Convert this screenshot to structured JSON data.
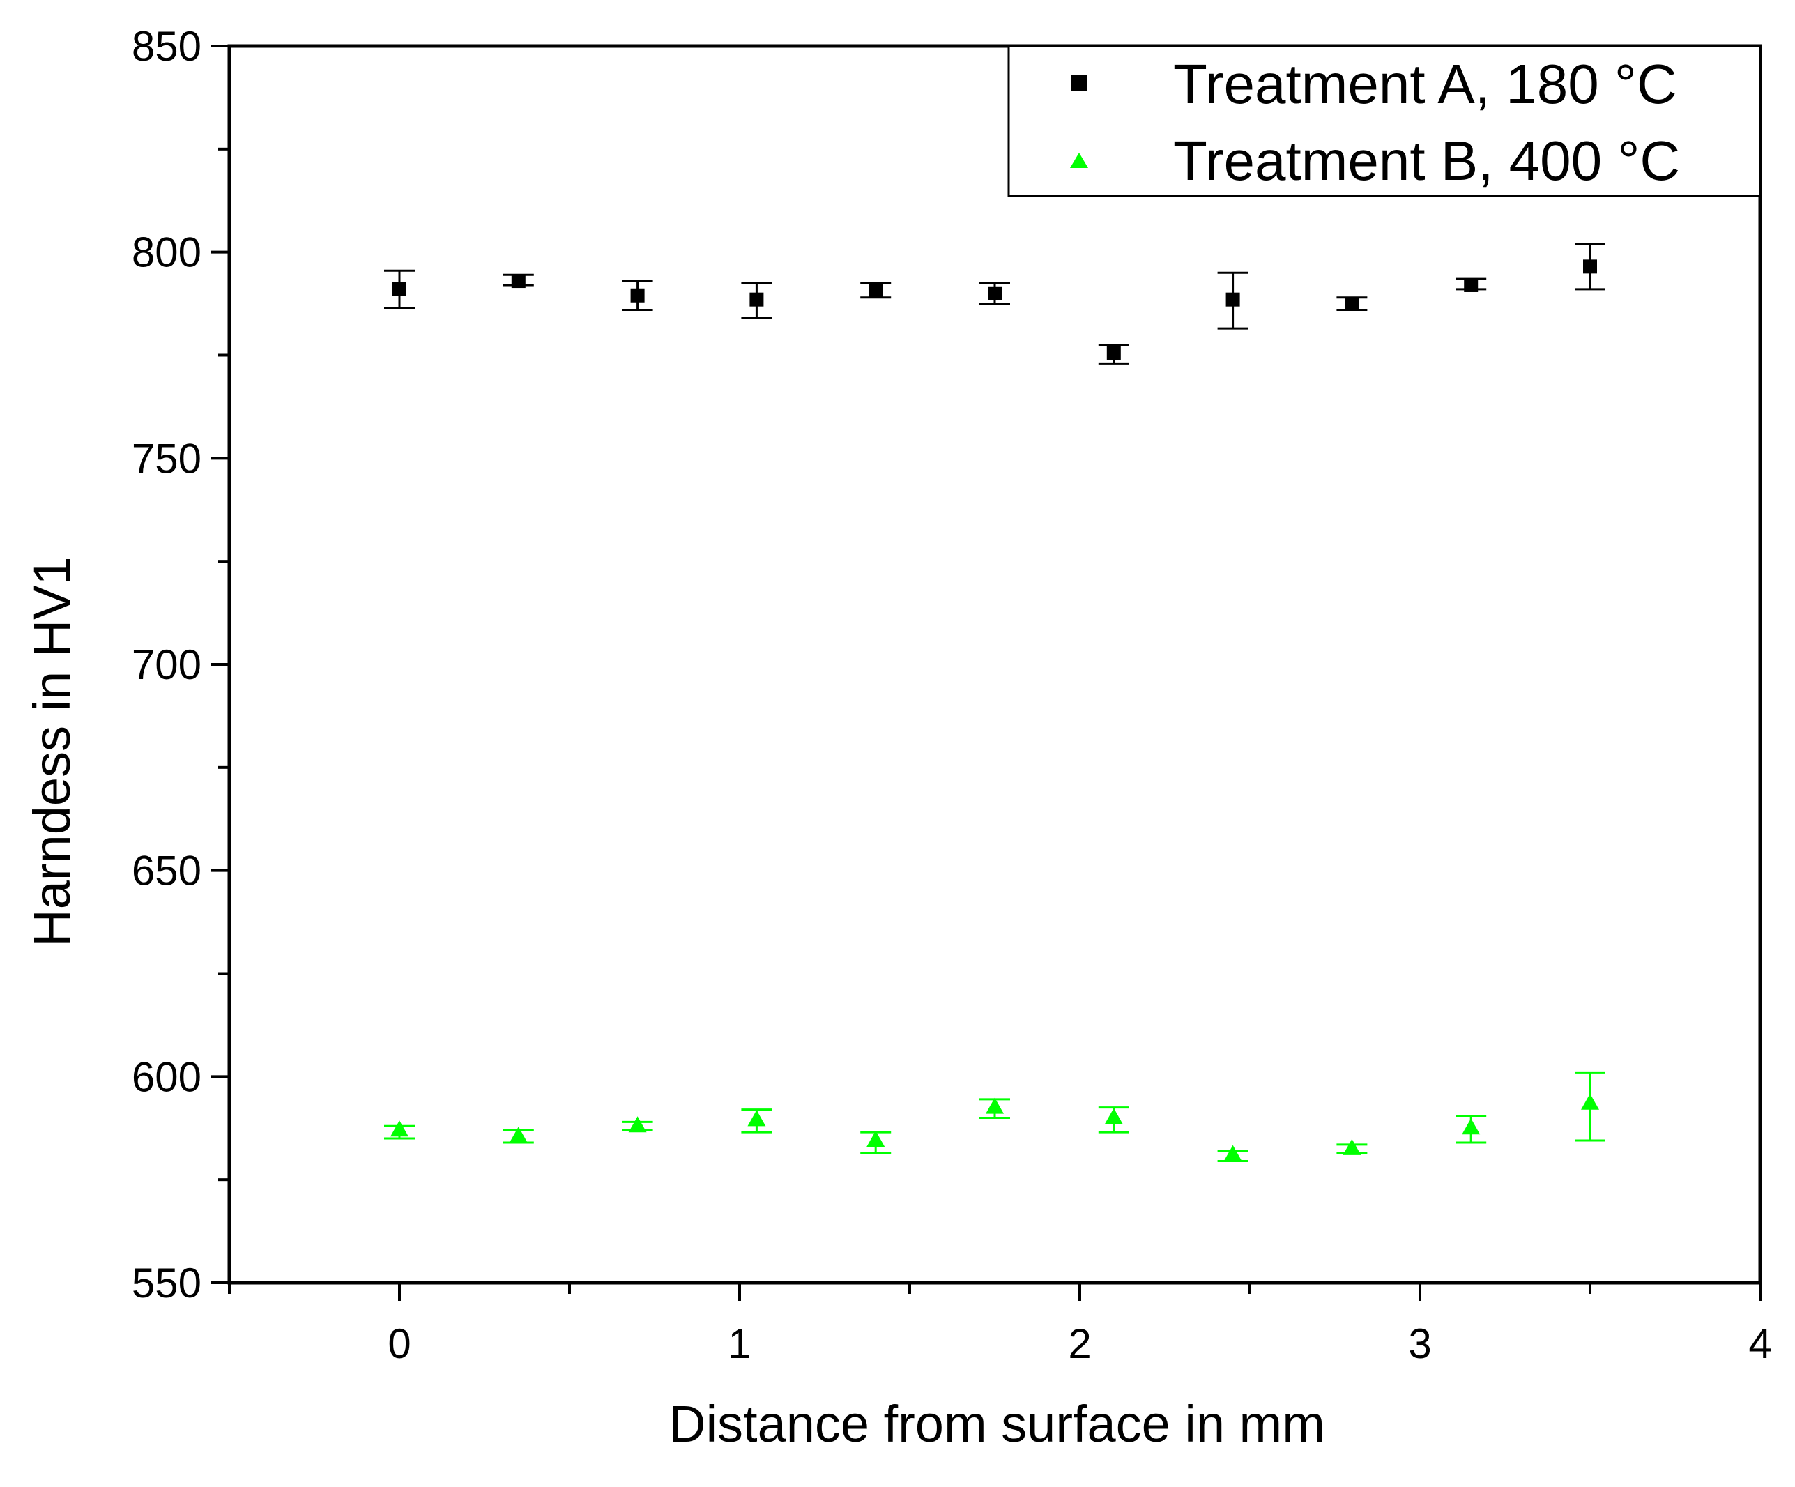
{
  "chart_data": {
    "type": "scatter",
    "xlabel": "Distance from surface in mm",
    "ylabel": "Harndess in HV1",
    "xlim": [
      -0.5,
      4
    ],
    "ylim": [
      550,
      850
    ],
    "x_ticks": [
      0,
      1,
      2,
      3,
      4
    ],
    "x_minor_ticks": [
      -0.5,
      0.5,
      1.5,
      2.5,
      3.5
    ],
    "y_ticks": [
      550,
      600,
      650,
      700,
      750,
      800,
      850
    ],
    "y_minor_ticks": [
      575,
      625,
      675,
      725,
      775,
      825
    ],
    "x_tick_labels": [
      "0",
      "1",
      "2",
      "3",
      "4"
    ],
    "y_tick_labels": [
      "550",
      "600",
      "650",
      "700",
      "750",
      "800",
      "850"
    ],
    "grid": false,
    "legend_position": "top-right",
    "series": [
      {
        "name": "Treatment A, 180 °C",
        "marker": "square",
        "color": "#000000",
        "x": [
          0,
          0.35,
          0.7,
          1.05,
          1.4,
          1.75,
          2.1,
          2.45,
          2.8,
          3.15,
          3.5
        ],
        "y": [
          791,
          793,
          789.5,
          788.5,
          790.5,
          790,
          775.5,
          788.5,
          787.5,
          792,
          796.5
        ],
        "err_low": [
          786.5,
          792,
          786,
          784,
          789,
          787.5,
          773,
          781.5,
          786,
          791,
          791
        ],
        "err_high": [
          795.5,
          794.5,
          793,
          792.5,
          792.5,
          792.5,
          777.5,
          795,
          789,
          793.5,
          802
        ]
      },
      {
        "name": "Treatment B, 400 °C",
        "marker": "triangle",
        "color": "#00ff00",
        "x": [
          0,
          0.35,
          0.7,
          1.05,
          1.4,
          1.75,
          2.1,
          2.45,
          2.8,
          3.15,
          3.5
        ],
        "y": [
          587,
          585.5,
          588,
          589.5,
          584.5,
          592.5,
          590,
          581,
          582.5,
          587.5,
          593.5
        ],
        "err_low": [
          585,
          584,
          587,
          586.5,
          581.5,
          590,
          586.5,
          579.5,
          581.5,
          584,
          584.5
        ],
        "err_high": [
          588,
          587,
          589,
          592,
          586.5,
          594.5,
          592.5,
          582,
          583.5,
          590.5,
          601
        ]
      }
    ]
  }
}
